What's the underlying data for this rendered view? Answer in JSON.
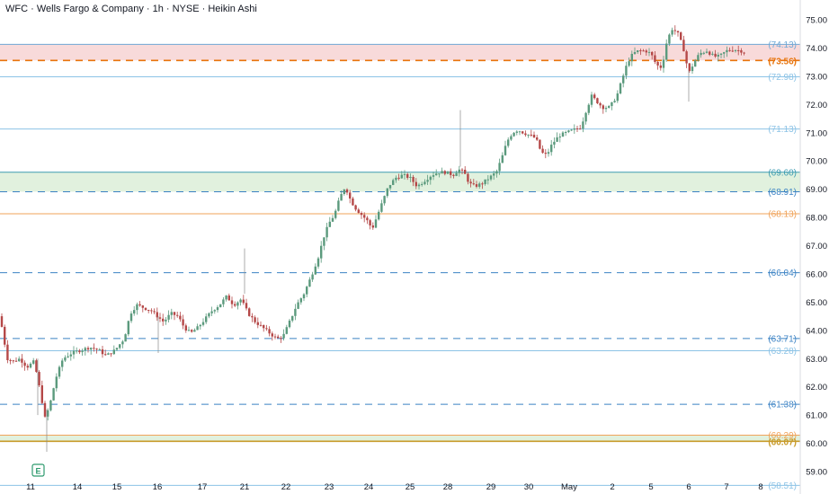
{
  "header": {
    "title": "WFC · Wells Fargo & Company · 1h · NYSE · Heikin Ashi"
  },
  "colors": {
    "up": "#5b9a7d",
    "down": "#b54848",
    "blue_line": "#3b82c4",
    "light_blue": "#8cc3e6",
    "orange": "#f0a35a",
    "gold": "#c89b2a",
    "red_zone": "#f7d4d4",
    "green_zone": "#dcefd8",
    "earnings_badge": "#2e9a6e"
  },
  "chart_data": {
    "type": "candlestick",
    "style": "Heikin Ashi",
    "y_axis": {
      "min": 59.0,
      "max": 75.0,
      "ticks": [
        "75.00",
        "74.00",
        "73.00",
        "72.00",
        "71.00",
        "70.00",
        "69.00",
        "68.00",
        "67.00",
        "66.00",
        "65.00",
        "64.00",
        "63.00",
        "62.00",
        "61.00",
        "60.00",
        "59.00"
      ]
    },
    "x_ticks": [
      "11",
      "14",
      "15",
      "16",
      "17",
      "21",
      "22",
      "23",
      "24",
      "25",
      "28",
      "29",
      "30",
      "May",
      "2",
      "5",
      "6",
      "7",
      "8"
    ],
    "zones": [
      {
        "name": "resistance",
        "from": 73.56,
        "to": 74.13,
        "color": "#f7d4d4"
      },
      {
        "name": "support",
        "from": 68.91,
        "to": 69.6,
        "color": "#dcefd8"
      },
      {
        "name": "base",
        "from": 60.07,
        "to": 60.29,
        "color": "#dcefd8"
      }
    ],
    "levels": [
      {
        "label": "(74.13)",
        "value": 74.13,
        "color": "#6fa8d6",
        "style": "solid"
      },
      {
        "label": "(73.56)",
        "value": 73.56,
        "color": "#e8740c",
        "style": "dashed",
        "bold": true
      },
      {
        "label": "(72.98)",
        "value": 72.98,
        "color": "#8cc3e6",
        "style": "solid"
      },
      {
        "label": "(71.13)",
        "value": 71.13,
        "color": "#8cc3e6",
        "style": "solid"
      },
      {
        "label": "(69.60)",
        "value": 69.6,
        "color": "#3b9bb0",
        "style": "solid"
      },
      {
        "label": "(68.91)",
        "value": 68.91,
        "color": "#3b82c4",
        "style": "dashed"
      },
      {
        "label": "(68.13)",
        "value": 68.13,
        "color": "#f0a35a",
        "style": "solid"
      },
      {
        "label": "(66.04)",
        "value": 66.04,
        "color": "#3b82c4",
        "style": "dashed"
      },
      {
        "label": "(63.71)",
        "value": 63.71,
        "color": "#3b82c4",
        "style": "dashed"
      },
      {
        "label": "(63.28)",
        "value": 63.28,
        "color": "#8cc3e6",
        "style": "solid"
      },
      {
        "label": "(61.38)",
        "value": 61.38,
        "color": "#3b82c4",
        "style": "dashed"
      },
      {
        "label": "(60.29)",
        "value": 60.29,
        "color": "#f0a35a",
        "style": "solid"
      },
      {
        "label": "(60.07)",
        "value": 60.07,
        "color": "#c89b2a",
        "style": "solid",
        "bold": true
      },
      {
        "label": "(58.51)",
        "value": 58.51,
        "color": "#8cc3e6",
        "style": "solid"
      }
    ],
    "earnings_marker": {
      "label": "E",
      "position": "below"
    },
    "waypoints": [
      [
        0,
        64.5
      ],
      [
        8,
        63.0
      ],
      [
        15,
        62.9
      ],
      [
        22,
        63.0
      ],
      [
        30,
        62.7
      ],
      [
        38,
        62.9
      ],
      [
        45,
        61.8
      ],
      [
        50,
        60.9
      ],
      [
        55,
        61.3
      ],
      [
        62,
        62.3
      ],
      [
        70,
        63.0
      ],
      [
        80,
        63.2
      ],
      [
        90,
        63.3
      ],
      [
        100,
        63.4
      ],
      [
        110,
        63.3
      ],
      [
        118,
        63.1
      ],
      [
        128,
        63.3
      ],
      [
        138,
        63.7
      ],
      [
        145,
        64.6
      ],
      [
        152,
        64.9
      ],
      [
        160,
        64.8
      ],
      [
        168,
        64.7
      ],
      [
        175,
        64.5
      ],
      [
        182,
        64.3
      ],
      [
        190,
        64.6
      ],
      [
        198,
        64.5
      ],
      [
        205,
        64.1
      ],
      [
        212,
        63.9
      ],
      [
        220,
        64.1
      ],
      [
        228,
        64.4
      ],
      [
        236,
        64.7
      ],
      [
        244,
        64.9
      ],
      [
        252,
        65.2
      ],
      [
        260,
        64.9
      ],
      [
        268,
        65.1
      ],
      [
        276,
        64.6
      ],
      [
        284,
        64.3
      ],
      [
        292,
        64.1
      ],
      [
        300,
        63.9
      ],
      [
        308,
        63.7
      ],
      [
        315,
        63.8
      ],
      [
        322,
        64.3
      ],
      [
        330,
        64.9
      ],
      [
        338,
        65.3
      ],
      [
        346,
        65.9
      ],
      [
        354,
        66.6
      ],
      [
        360,
        67.3
      ],
      [
        366,
        67.8
      ],
      [
        372,
        68.1
      ],
      [
        378,
        68.7
      ],
      [
        384,
        69.1
      ],
      [
        390,
        68.6
      ],
      [
        396,
        68.3
      ],
      [
        402,
        68.1
      ],
      [
        408,
        67.9
      ],
      [
        414,
        67.6
      ],
      [
        420,
        68.1
      ],
      [
        426,
        68.6
      ],
      [
        432,
        69.1
      ],
      [
        440,
        69.4
      ],
      [
        448,
        69.5
      ],
      [
        456,
        69.4
      ],
      [
        464,
        69.1
      ],
      [
        472,
        69.3
      ],
      [
        480,
        69.5
      ],
      [
        488,
        69.6
      ],
      [
        496,
        69.6
      ],
      [
        504,
        69.5
      ],
      [
        510,
        69.7
      ],
      [
        516,
        69.6
      ],
      [
        522,
        69.2
      ],
      [
        528,
        69.1
      ],
      [
        536,
        69.2
      ],
      [
        544,
        69.4
      ],
      [
        552,
        69.6
      ],
      [
        558,
        70.1
      ],
      [
        564,
        70.7
      ],
      [
        570,
        71.0
      ],
      [
        576,
        71.1
      ],
      [
        582,
        71.0
      ],
      [
        590,
        70.9
      ],
      [
        596,
        70.8
      ],
      [
        602,
        70.3
      ],
      [
        608,
        70.2
      ],
      [
        614,
        70.6
      ],
      [
        622,
        70.9
      ],
      [
        630,
        71.0
      ],
      [
        638,
        71.1
      ],
      [
        646,
        71.2
      ],
      [
        652,
        71.8
      ],
      [
        658,
        72.3
      ],
      [
        664,
        72.1
      ],
      [
        670,
        71.9
      ],
      [
        678,
        71.9
      ],
      [
        686,
        72.3
      ],
      [
        692,
        72.9
      ],
      [
        698,
        73.5
      ],
      [
        704,
        73.8
      ],
      [
        710,
        73.9
      ],
      [
        718,
        73.9
      ],
      [
        724,
        73.8
      ],
      [
        730,
        73.4
      ],
      [
        736,
        73.3
      ],
      [
        742,
        74.3
      ],
      [
        748,
        74.7
      ],
      [
        754,
        74.5
      ],
      [
        760,
        74.0
      ],
      [
        766,
        73.1
      ],
      [
        772,
        73.5
      ],
      [
        778,
        73.8
      ],
      [
        786,
        73.9
      ],
      [
        794,
        73.7
      ],
      [
        800,
        73.7
      ],
      [
        808,
        73.9
      ],
      [
        816,
        73.95
      ],
      [
        824,
        73.9
      ],
      [
        828,
        73.85
      ]
    ]
  }
}
